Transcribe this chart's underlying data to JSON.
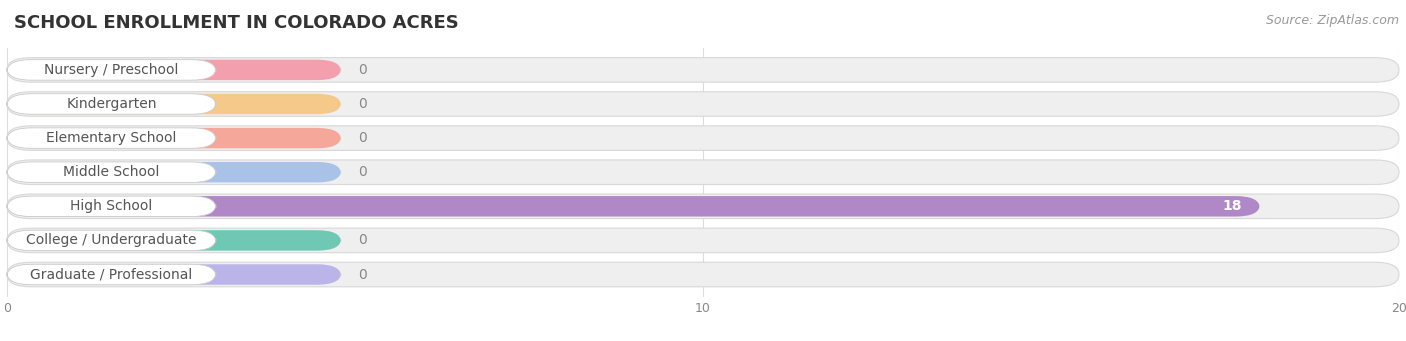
{
  "title": "SCHOOL ENROLLMENT IN COLORADO ACRES",
  "source": "Source: ZipAtlas.com",
  "categories": [
    "Nursery / Preschool",
    "Kindergarten",
    "Elementary School",
    "Middle School",
    "High School",
    "College / Undergraduate",
    "Graduate / Professional"
  ],
  "values": [
    0,
    0,
    0,
    0,
    18,
    0,
    0
  ],
  "bar_colors": [
    "#f49fae",
    "#f5c98a",
    "#f5a89a",
    "#a8c2e8",
    "#b088c8",
    "#6ec8b4",
    "#bab4e8"
  ],
  "bar_bg_color": "#efefef",
  "bar_bg_edge_color": "#d8d8d8",
  "value_label_color_default": "#888888",
  "value_label_color_bar": "#ffffff",
  "xlim_max": 20,
  "xticks": [
    0,
    10,
    20
  ],
  "title_fontsize": 13,
  "source_fontsize": 9,
  "label_fontsize": 10,
  "value_fontsize": 10,
  "background_color": "#ffffff",
  "grid_color": "#dddddd",
  "label_text_color": "#555555"
}
